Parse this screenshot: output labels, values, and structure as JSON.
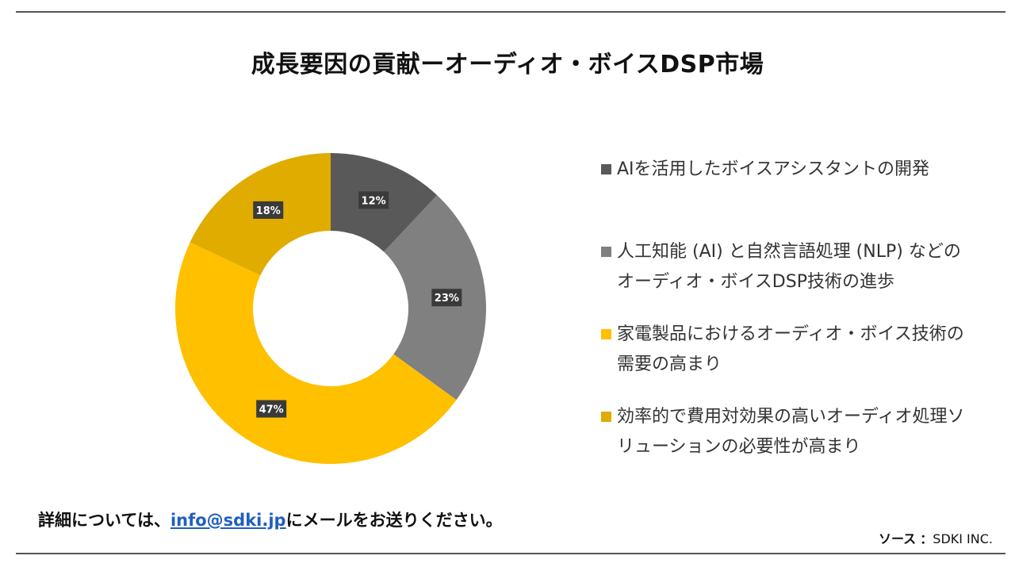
{
  "title": "成長要因の貢献ーオーディオ・ボイスDSP市場",
  "chart_data": {
    "type": "pie",
    "subtype": "donut",
    "title": "成長要因の貢献ーオーディオ・ボイスDSP市場",
    "categories": [
      "AIを活用したボイスアシスタントの開発",
      "人工知能 (AI) と自然言語処理 (NLP) などのオーディオ・ボイスDSP技術の進歩",
      "家電製品におけるオーディオ・ボイス技術の需要の高まり",
      "効率的で費用対効果の高いオーディオ処理ソリューションの必要性が高まり"
    ],
    "values": [
      12,
      23,
      47,
      18
    ],
    "labels": [
      "12%",
      "23%",
      "47%",
      "18%"
    ],
    "colors": [
      "#595959",
      "#808080",
      "#FFC000",
      "#E0AC00"
    ],
    "legend_position": "right"
  },
  "legend": [
    {
      "text": "AIを活用したボイスアシスタントの開発",
      "color": "#595959"
    },
    {
      "text": "人工知能 (AI) と自然言語処理 (NLP) などのオーディオ・ボイスDSP技術の進歩",
      "color": "#808080"
    },
    {
      "text": "家電製品におけるオーディオ・ボイス技術の需要の高まり",
      "color": "#FFC000"
    },
    {
      "text": "効率的で費用対効果の高いオーディオ処理ソリューションの必要性が高まり",
      "color": "#E0AC00"
    }
  ],
  "footer": {
    "prefix": "詳細については、",
    "email": "info@sdki.jp",
    "suffix": "にメールをお送りください。"
  },
  "source": {
    "label": "ソース",
    "separator": "：",
    "value": "SDKI INC."
  }
}
